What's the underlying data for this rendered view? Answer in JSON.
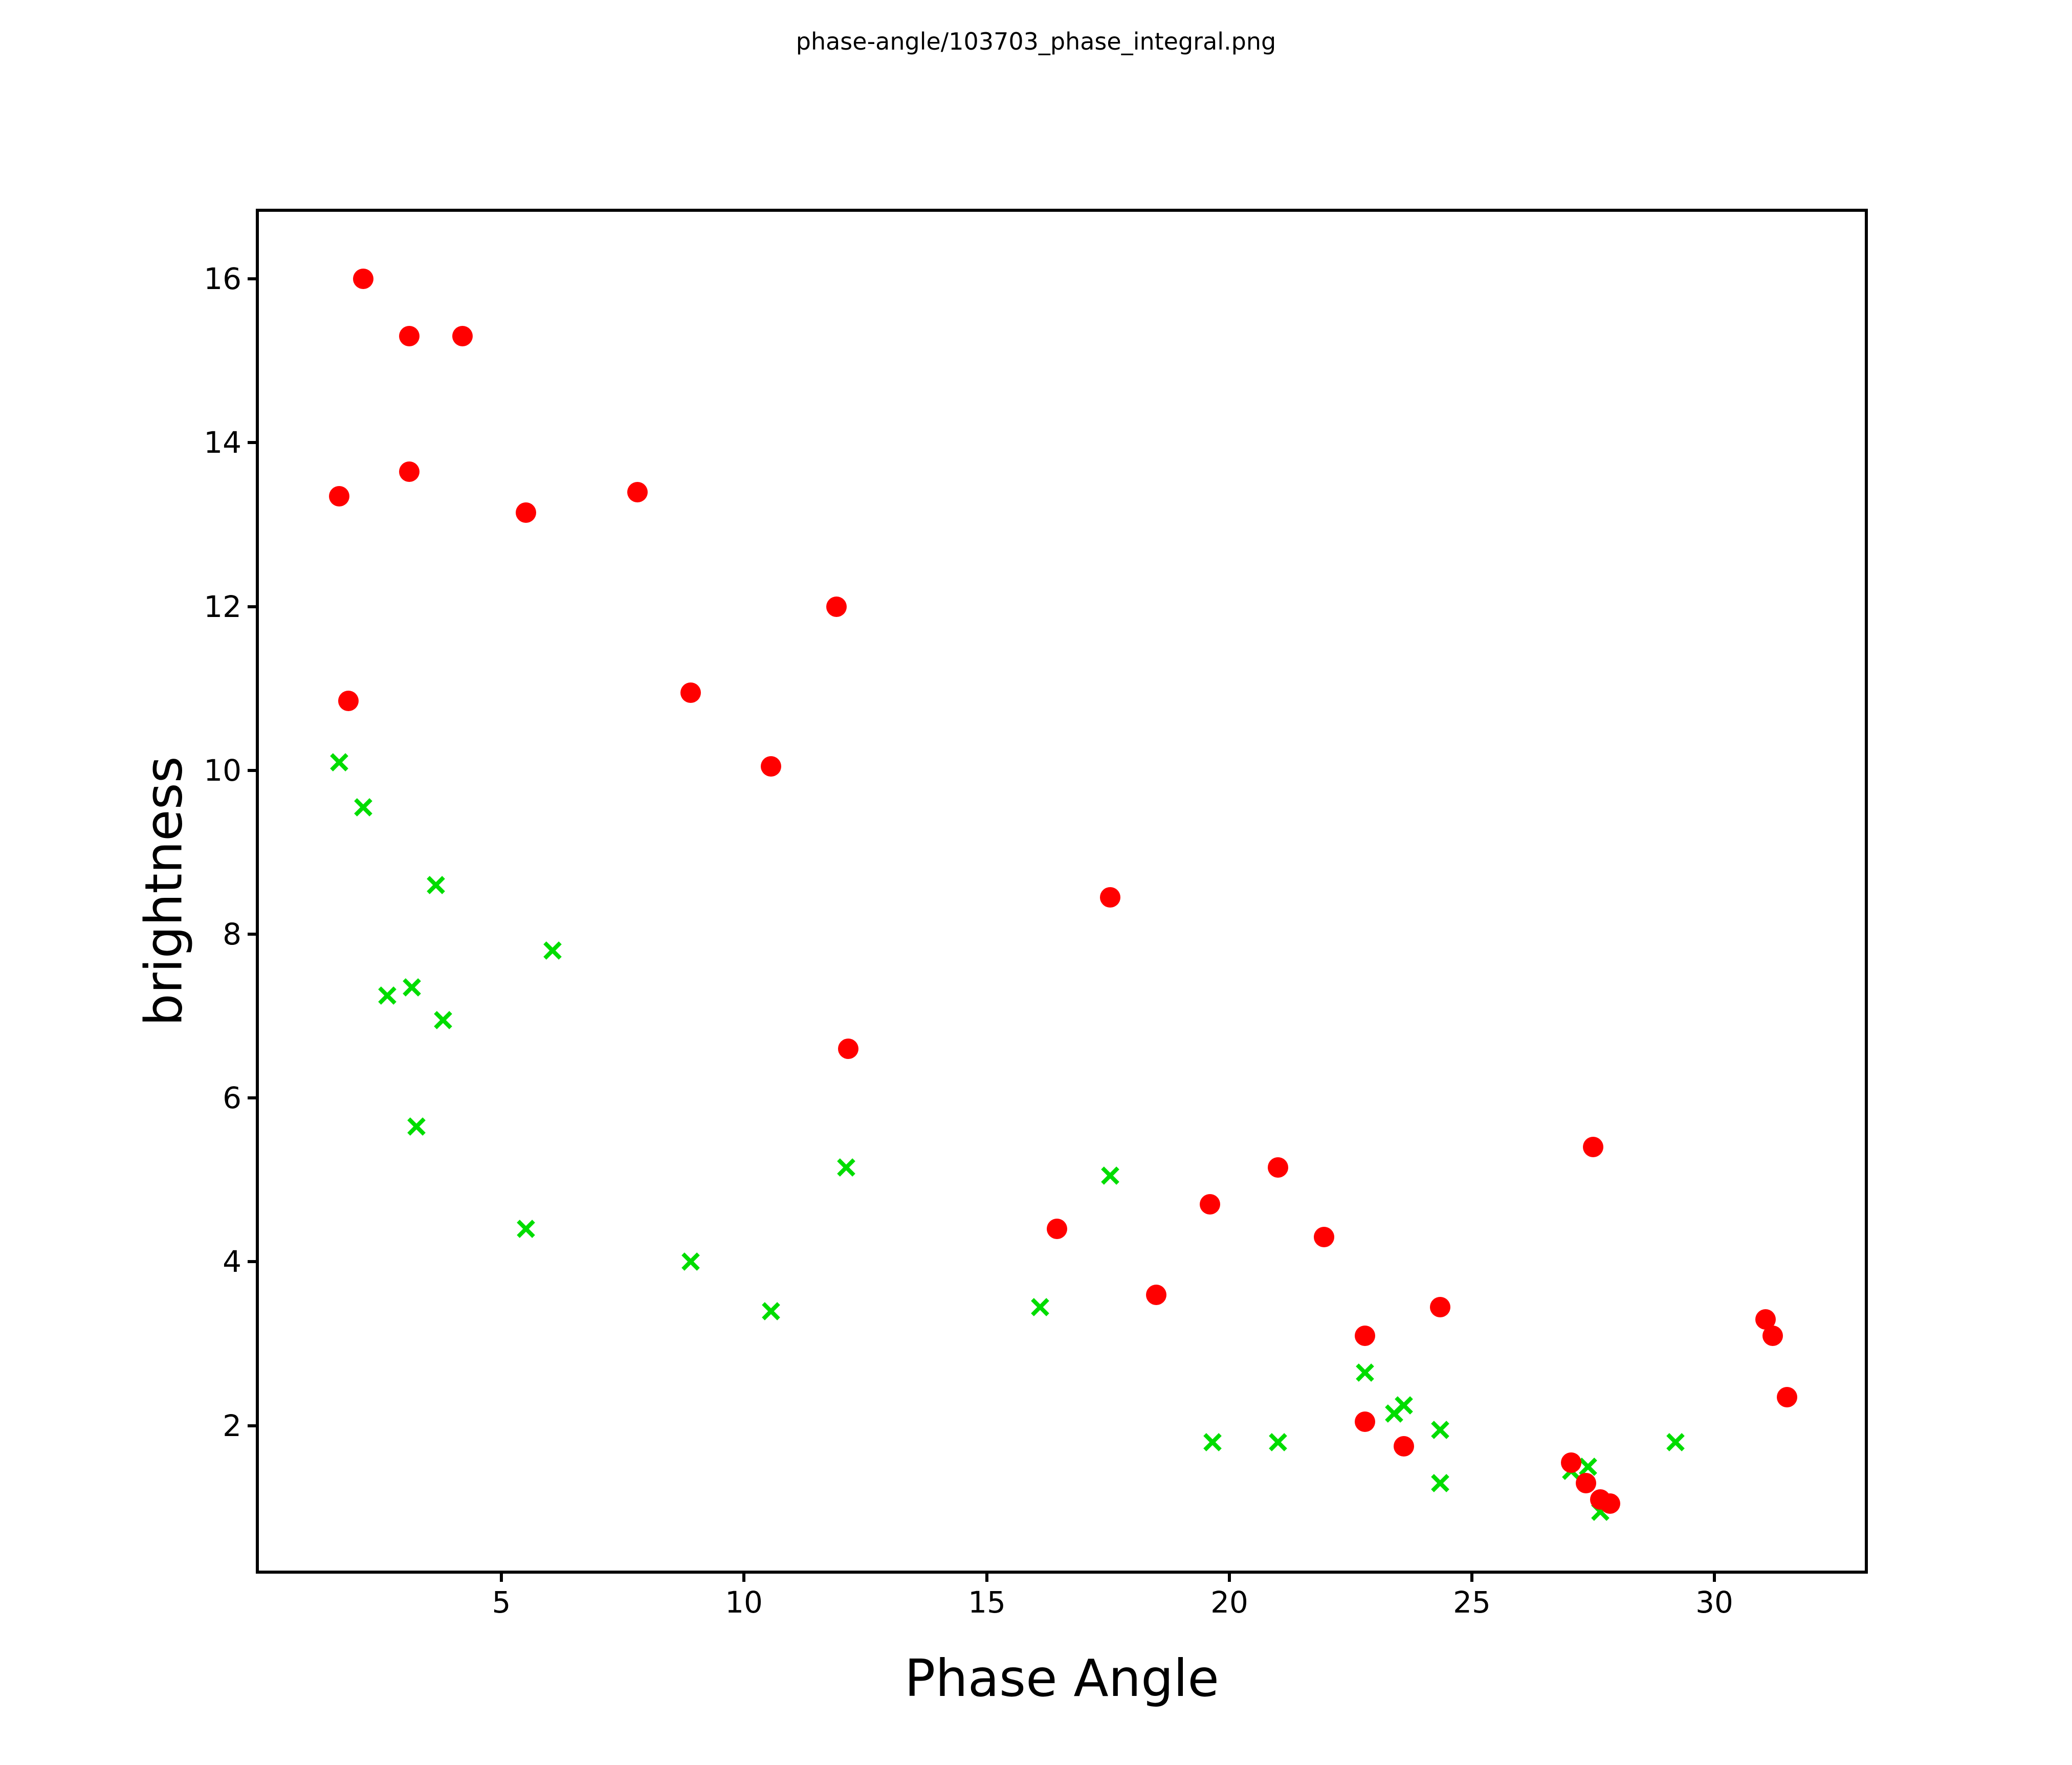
{
  "chart_data": {
    "type": "scatter",
    "title": "phase-angle/103703_phase_integral.png",
    "xlabel": "Phase Angle",
    "ylabel": "brightness",
    "xlim": [
      0.0,
      33.1
    ],
    "ylim": [
      0.23,
      16.82
    ],
    "x_ticks": [
      5,
      10,
      15,
      20,
      25,
      30
    ],
    "y_ticks": [
      16,
      14,
      12,
      10,
      8,
      6,
      4,
      2
    ],
    "grid": false,
    "legend": null,
    "background": "#ffffff",
    "series": [
      {
        "name": "green-crosses",
        "marker": "x",
        "color": "#00dd00",
        "points": [
          [
            1.65,
            10.1
          ],
          [
            2.15,
            9.55
          ],
          [
            2.65,
            7.25
          ],
          [
            3.15,
            7.35
          ],
          [
            3.25,
            5.65
          ],
          [
            3.65,
            8.6
          ],
          [
            3.8,
            6.95
          ],
          [
            5.5,
            4.4
          ],
          [
            6.05,
            7.8
          ],
          [
            8.9,
            4.0
          ],
          [
            10.55,
            3.4
          ],
          [
            12.1,
            5.15
          ],
          [
            16.1,
            3.45
          ],
          [
            17.55,
            5.05
          ],
          [
            19.65,
            1.8
          ],
          [
            21.0,
            1.8
          ],
          [
            22.8,
            2.65
          ],
          [
            23.4,
            2.15
          ],
          [
            23.6,
            2.25
          ],
          [
            24.35,
            1.95
          ],
          [
            24.35,
            1.3
          ],
          [
            27.05,
            1.45
          ],
          [
            27.4,
            1.5
          ],
          [
            27.65,
            0.95
          ],
          [
            29.2,
            1.8
          ]
        ]
      },
      {
        "name": "red-circles",
        "marker": "circle",
        "color": "#ff0000",
        "points": [
          [
            1.65,
            13.35
          ],
          [
            1.85,
            10.85
          ],
          [
            2.15,
            16.0
          ],
          [
            3.1,
            15.3
          ],
          [
            3.1,
            13.65
          ],
          [
            4.2,
            15.3
          ],
          [
            5.5,
            13.15
          ],
          [
            7.8,
            13.4
          ],
          [
            8.9,
            10.95
          ],
          [
            10.55,
            10.05
          ],
          [
            11.9,
            12.0
          ],
          [
            12.15,
            6.6
          ],
          [
            16.45,
            4.4
          ],
          [
            17.55,
            8.45
          ],
          [
            18.5,
            3.6
          ],
          [
            19.6,
            4.7
          ],
          [
            21.0,
            5.15
          ],
          [
            21.95,
            4.3
          ],
          [
            22.8,
            3.1
          ],
          [
            22.8,
            2.05
          ],
          [
            23.6,
            1.75
          ],
          [
            24.35,
            3.45
          ],
          [
            27.05,
            1.55
          ],
          [
            27.35,
            1.3
          ],
          [
            27.65,
            1.1
          ],
          [
            27.85,
            1.05
          ],
          [
            27.5,
            5.4
          ],
          [
            31.05,
            3.3
          ],
          [
            31.2,
            3.1
          ],
          [
            31.5,
            2.35
          ]
        ]
      }
    ]
  }
}
